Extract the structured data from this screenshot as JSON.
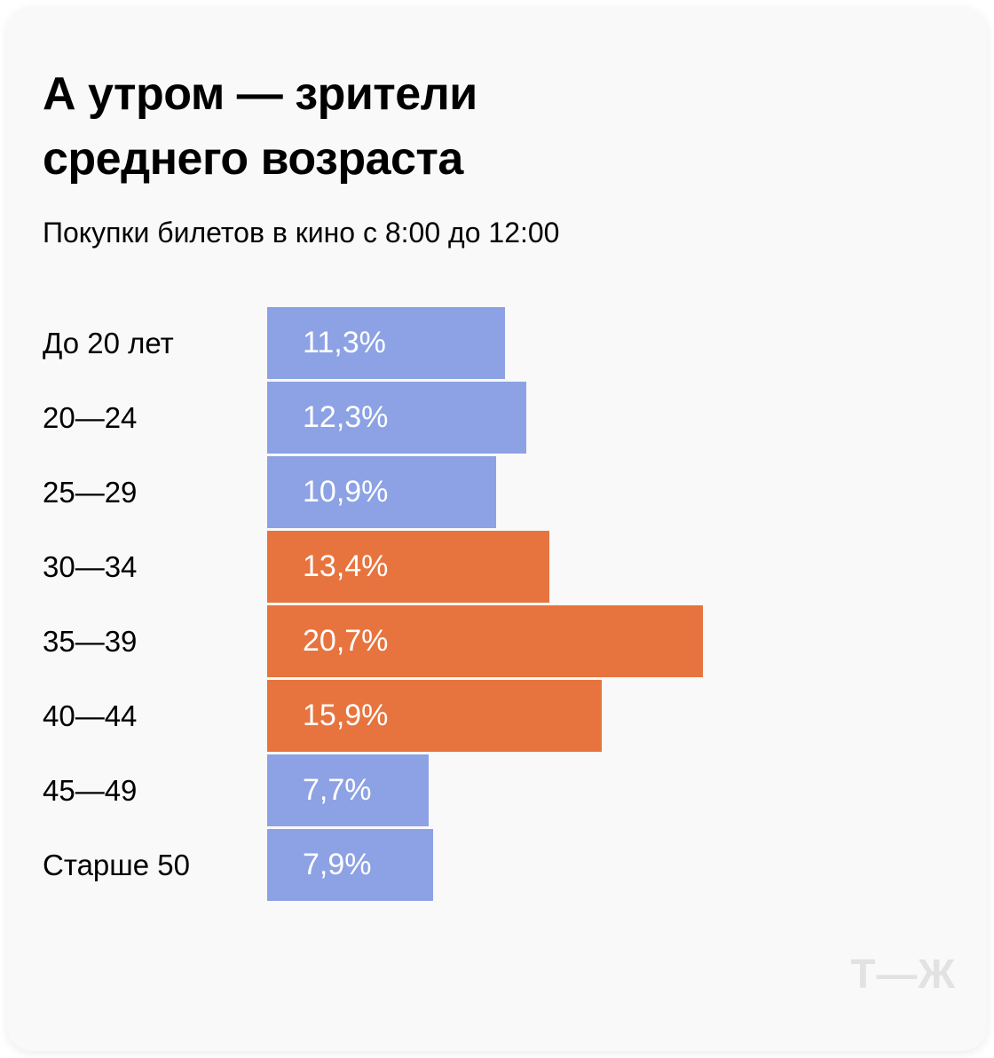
{
  "card": {
    "title": "А утром — зрители среднего возраста",
    "subtitle": "Покупки билетов в кино с 8:00 до 12:00",
    "logo_text": "Т—Ж"
  },
  "colors": {
    "blue": "#8da2e4",
    "orange": "#e7743e",
    "card_bg": "#f9f9f9",
    "label_text": "#000000",
    "value_text": "#ffffff",
    "logo_gray": "#e2e2e2"
  },
  "chart_data": {
    "type": "bar",
    "orientation": "horizontal",
    "title": "А утром — зрители среднего возраста",
    "subtitle": "Покупки билетов в кино с 8:00 до 12:00",
    "categories": [
      "До 20 лет",
      "20—24",
      "25—29",
      "30—34",
      "35—39",
      "40—44",
      "45—49",
      "Старше 50"
    ],
    "values": [
      11.3,
      12.3,
      10.9,
      13.4,
      20.7,
      15.9,
      7.7,
      7.9
    ],
    "value_labels": [
      "11,3%",
      "12,3%",
      "10,9%",
      "13,4%",
      "20,7%",
      "15,9%",
      "7,7%",
      "7,9%"
    ],
    "bar_colors": [
      "blue",
      "blue",
      "blue",
      "orange",
      "orange",
      "orange",
      "blue",
      "blue"
    ],
    "unit": "%",
    "xlim": [
      0,
      33
    ],
    "legend": false,
    "gridlines": false,
    "value_label_position": "inside-left"
  }
}
